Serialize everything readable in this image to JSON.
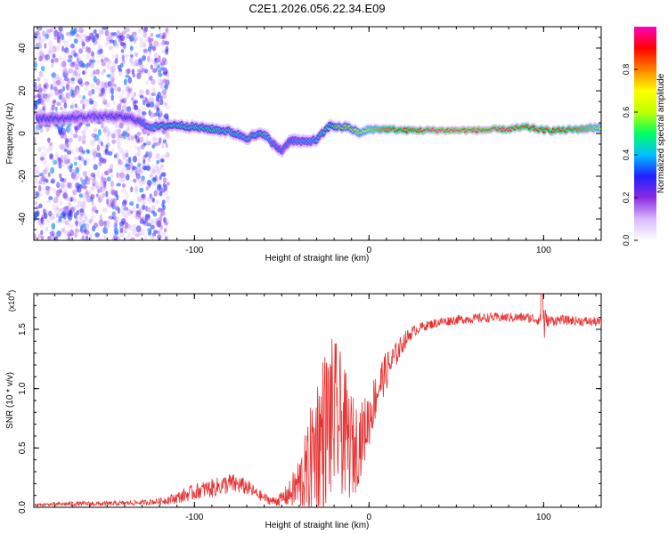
{
  "title": "C2E1.2026.056.22.34.E09",
  "chart_data": [
    {
      "type": "heatmap",
      "xlabel": "Height of straight line (km)",
      "ylabel": "Frequency (Hz)",
      "xlim": [
        -192,
        133
      ],
      "ylim": [
        -50,
        50
      ],
      "xticks": [
        -100,
        0,
        100
      ],
      "yticks": [
        -40,
        -20,
        0,
        20,
        40
      ],
      "colorbar": {
        "label": "Normalized spectral amplitude",
        "range": [
          0,
          1
        ],
        "ticks": [
          0.0,
          0.2,
          0.4,
          0.6,
          0.8
        ],
        "colormap": [
          "#ffffff",
          "#d9b8ff",
          "#8a2be2",
          "#2020ff",
          "#00c0ff",
          "#00ff60",
          "#c0ff00",
          "#ffff00",
          "#ff8000",
          "#ff0000",
          "#ff00c0"
        ]
      },
      "ridge": {
        "x": [
          -190,
          -175,
          -160,
          -145,
          -135,
          -125,
          -110,
          -100,
          -90,
          -80,
          -70,
          -60,
          -55,
          -50,
          -45,
          -38,
          -30,
          -22,
          -18,
          -12,
          -5,
          0,
          10,
          20,
          40,
          60,
          80,
          90,
          100,
          110,
          120,
          133
        ],
        "freq": [
          7,
          7,
          8,
          8,
          7,
          3,
          4,
          3,
          2,
          1,
          -2,
          0,
          -5,
          -8,
          -3,
          -4,
          -3,
          4,
          3,
          3,
          0,
          2,
          2,
          1.5,
          1.5,
          1.5,
          2,
          3,
          1.5,
          1.5,
          2,
          3
        ],
        "amplitude": [
          0.32,
          0.3,
          0.28,
          0.3,
          0.3,
          0.42,
          0.48,
          0.45,
          0.48,
          0.45,
          0.42,
          0.45,
          0.38,
          0.35,
          0.35,
          0.4,
          0.42,
          0.5,
          0.6,
          0.6,
          0.68,
          0.72,
          0.85,
          0.9,
          1.0,
          1.0,
          0.95,
          0.9,
          0.9,
          0.9,
          0.85,
          0.7
        ]
      },
      "noise_region_km": [
        -192,
        -115
      ]
    },
    {
      "type": "line",
      "xlabel": "Height of straight line (km)",
      "ylabel": "SNR (10 * v/v)",
      "scale_label": "(x10",
      "scale_exponent": "4",
      "xlim": [
        -192,
        133
      ],
      "ylim": [
        0,
        1.8
      ],
      "xticks": [
        -100,
        0,
        100
      ],
      "yticks": [
        0.0,
        0.5,
        1.0,
        1.5
      ],
      "color": "#e83232",
      "series": {
        "name": "SNR",
        "x": [
          -192,
          -170,
          -150,
          -130,
          -120,
          -110,
          -100,
          -95,
          -90,
          -85,
          -80,
          -75,
          -70,
          -65,
          -60,
          -55,
          -50,
          -45,
          -40,
          -35,
          -32,
          -28,
          -24,
          -20,
          -16,
          -12,
          -8,
          -4,
          0,
          4,
          8,
          12,
          16,
          20,
          25,
          30,
          40,
          50,
          60,
          70,
          80,
          90,
          98,
          100,
          102,
          110,
          120,
          133
        ],
        "base": [
          0.02,
          0.03,
          0.03,
          0.04,
          0.05,
          0.08,
          0.13,
          0.15,
          0.16,
          0.18,
          0.2,
          0.19,
          0.17,
          0.12,
          0.08,
          0.05,
          0.07,
          0.12,
          0.2,
          0.3,
          0.45,
          0.6,
          0.7,
          0.75,
          0.7,
          0.55,
          0.5,
          0.6,
          0.75,
          0.95,
          1.1,
          1.2,
          1.3,
          1.4,
          1.48,
          1.52,
          1.56,
          1.58,
          1.59,
          1.6,
          1.6,
          1.6,
          1.58,
          1.55,
          1.57,
          1.58,
          1.57,
          1.56
        ],
        "spread": [
          0.01,
          0.02,
          0.02,
          0.02,
          0.03,
          0.05,
          0.07,
          0.07,
          0.08,
          0.08,
          0.09,
          0.08,
          0.07,
          0.05,
          0.04,
          0.04,
          0.06,
          0.12,
          0.25,
          0.4,
          0.55,
          0.65,
          0.7,
          0.7,
          0.6,
          0.5,
          0.4,
          0.3,
          0.25,
          0.2,
          0.18,
          0.15,
          0.1,
          0.08,
          0.05,
          0.04,
          0.04,
          0.04,
          0.04,
          0.04,
          0.04,
          0.04,
          0.05,
          0.2,
          0.05,
          0.04,
          0.04,
          0.04
        ]
      }
    }
  ]
}
